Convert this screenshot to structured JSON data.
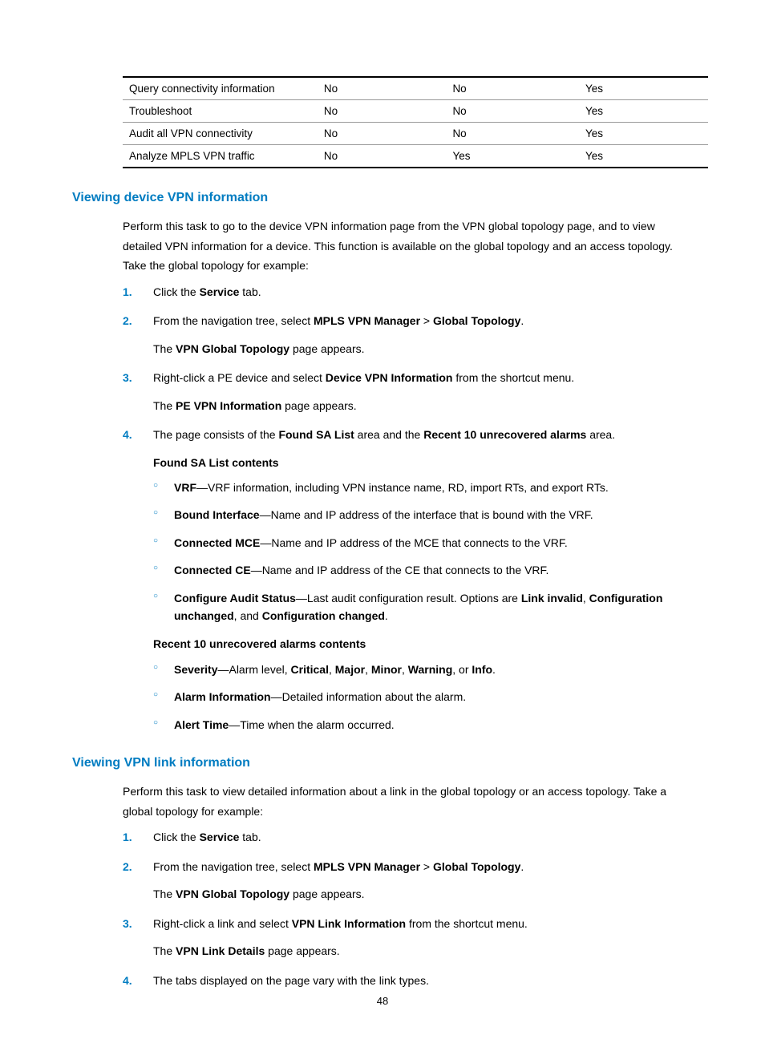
{
  "table": {
    "rows": [
      {
        "c1": "Query connectivity information",
        "c2": "No",
        "c3": "No",
        "c4": "Yes"
      },
      {
        "c1": "Troubleshoot",
        "c2": "No",
        "c3": "No",
        "c4": "Yes"
      },
      {
        "c1": "Audit all VPN connectivity",
        "c2": "No",
        "c3": "No",
        "c4": "Yes"
      },
      {
        "c1": "Analyze MPLS VPN traffic",
        "c2": "No",
        "c3": "Yes",
        "c4": "Yes"
      }
    ]
  },
  "section1": {
    "heading": "Viewing device VPN information",
    "intro": "Perform this task to go to the device VPN information page from the VPN global topology page, and to view detailed VPN information for a device. This function is available on the global topology and an access topology. Take the global topology for example:",
    "step1_prefix": "Click the ",
    "step1_bold": "Service",
    "step1_suffix": " tab.",
    "step2_prefix": "From the navigation tree, select ",
    "step2_b1": "MPLS VPN Manager",
    "step2_mid": " > ",
    "step2_b2": "Global Topology",
    "step2_suffix": ".",
    "step2_sub_a": "The ",
    "step2_sub_b": "VPN Global Topology",
    "step2_sub_c": " page appears.",
    "step3_prefix": "Right-click a PE device and select ",
    "step3_b1": "Device VPN Information",
    "step3_suffix": " from the shortcut menu.",
    "step3_sub_a": "The ",
    "step3_sub_b": "PE VPN Information",
    "step3_sub_c": " page appears.",
    "step4_prefix": "The page consists of the ",
    "step4_b1": "Found SA List",
    "step4_mid1": " area and the ",
    "step4_b2": "Recent 10 unrecovered alarms",
    "step4_suffix": " area.",
    "found_heading": "Found SA List contents",
    "b_vrf": "VRF",
    "t_vrf": "—VRF information, including VPN instance name, RD, import RTs, and export RTs.",
    "b_bound": "Bound Interface",
    "t_bound": "—Name and IP address of the interface that is bound with the VRF.",
    "b_mce": "Connected MCE",
    "t_mce": "—Name and IP address of the MCE that connects to the VRF.",
    "b_ce": "Connected CE",
    "t_ce": "—Name and IP address of the CE that connects to the VRF.",
    "b_cfg": "Configure Audit Status",
    "t_cfg_a": "—Last audit configuration result. Options are ",
    "t_cfg_b1": "Link invalid",
    "t_cfg_m1": ", ",
    "t_cfg_b2": "Configuration unchanged",
    "t_cfg_m2": ", and ",
    "t_cfg_b3": "Configuration changed",
    "t_cfg_suffix": ".",
    "recent_heading": "Recent 10 unrecovered alarms contents",
    "b_sev": "Severity",
    "t_sev_a": "—Alarm level, ",
    "t_sev_b1": "Critical",
    "t_sev_m1": ", ",
    "t_sev_b2": "Major",
    "t_sev_m2": ", ",
    "t_sev_b3": "Minor",
    "t_sev_m3": ", ",
    "t_sev_b4": "Warning",
    "t_sev_m4": ", or ",
    "t_sev_b5": "Info",
    "t_sev_suffix": ".",
    "b_alarm": "Alarm Information",
    "t_alarm": "—Detailed information about the alarm.",
    "b_alert": "Alert Time",
    "t_alert": "—Time when the alarm occurred."
  },
  "section2": {
    "heading": "Viewing VPN link information",
    "intro": "Perform this task to view detailed information about a link in the global topology or an access topology. Take a global topology for example:",
    "step1_prefix": "Click the ",
    "step1_bold": "Service",
    "step1_suffix": " tab.",
    "step2_prefix": "From the navigation tree, select ",
    "step2_b1": "MPLS VPN Manager",
    "step2_mid": " > ",
    "step2_b2": "Global Topology",
    "step2_suffix": ".",
    "step2_sub_a": "The ",
    "step2_sub_b": "VPN Global Topology",
    "step2_sub_c": " page appears.",
    "step3_prefix": "Right-click a link and select ",
    "step3_b1": "VPN Link Information",
    "step3_suffix": " from the shortcut menu.",
    "step3_sub_a": "The ",
    "step3_sub_b": "VPN Link Details",
    "step3_sub_c": " page appears.",
    "step4": "The tabs displayed on the page vary with the link types."
  },
  "page_number": "48"
}
